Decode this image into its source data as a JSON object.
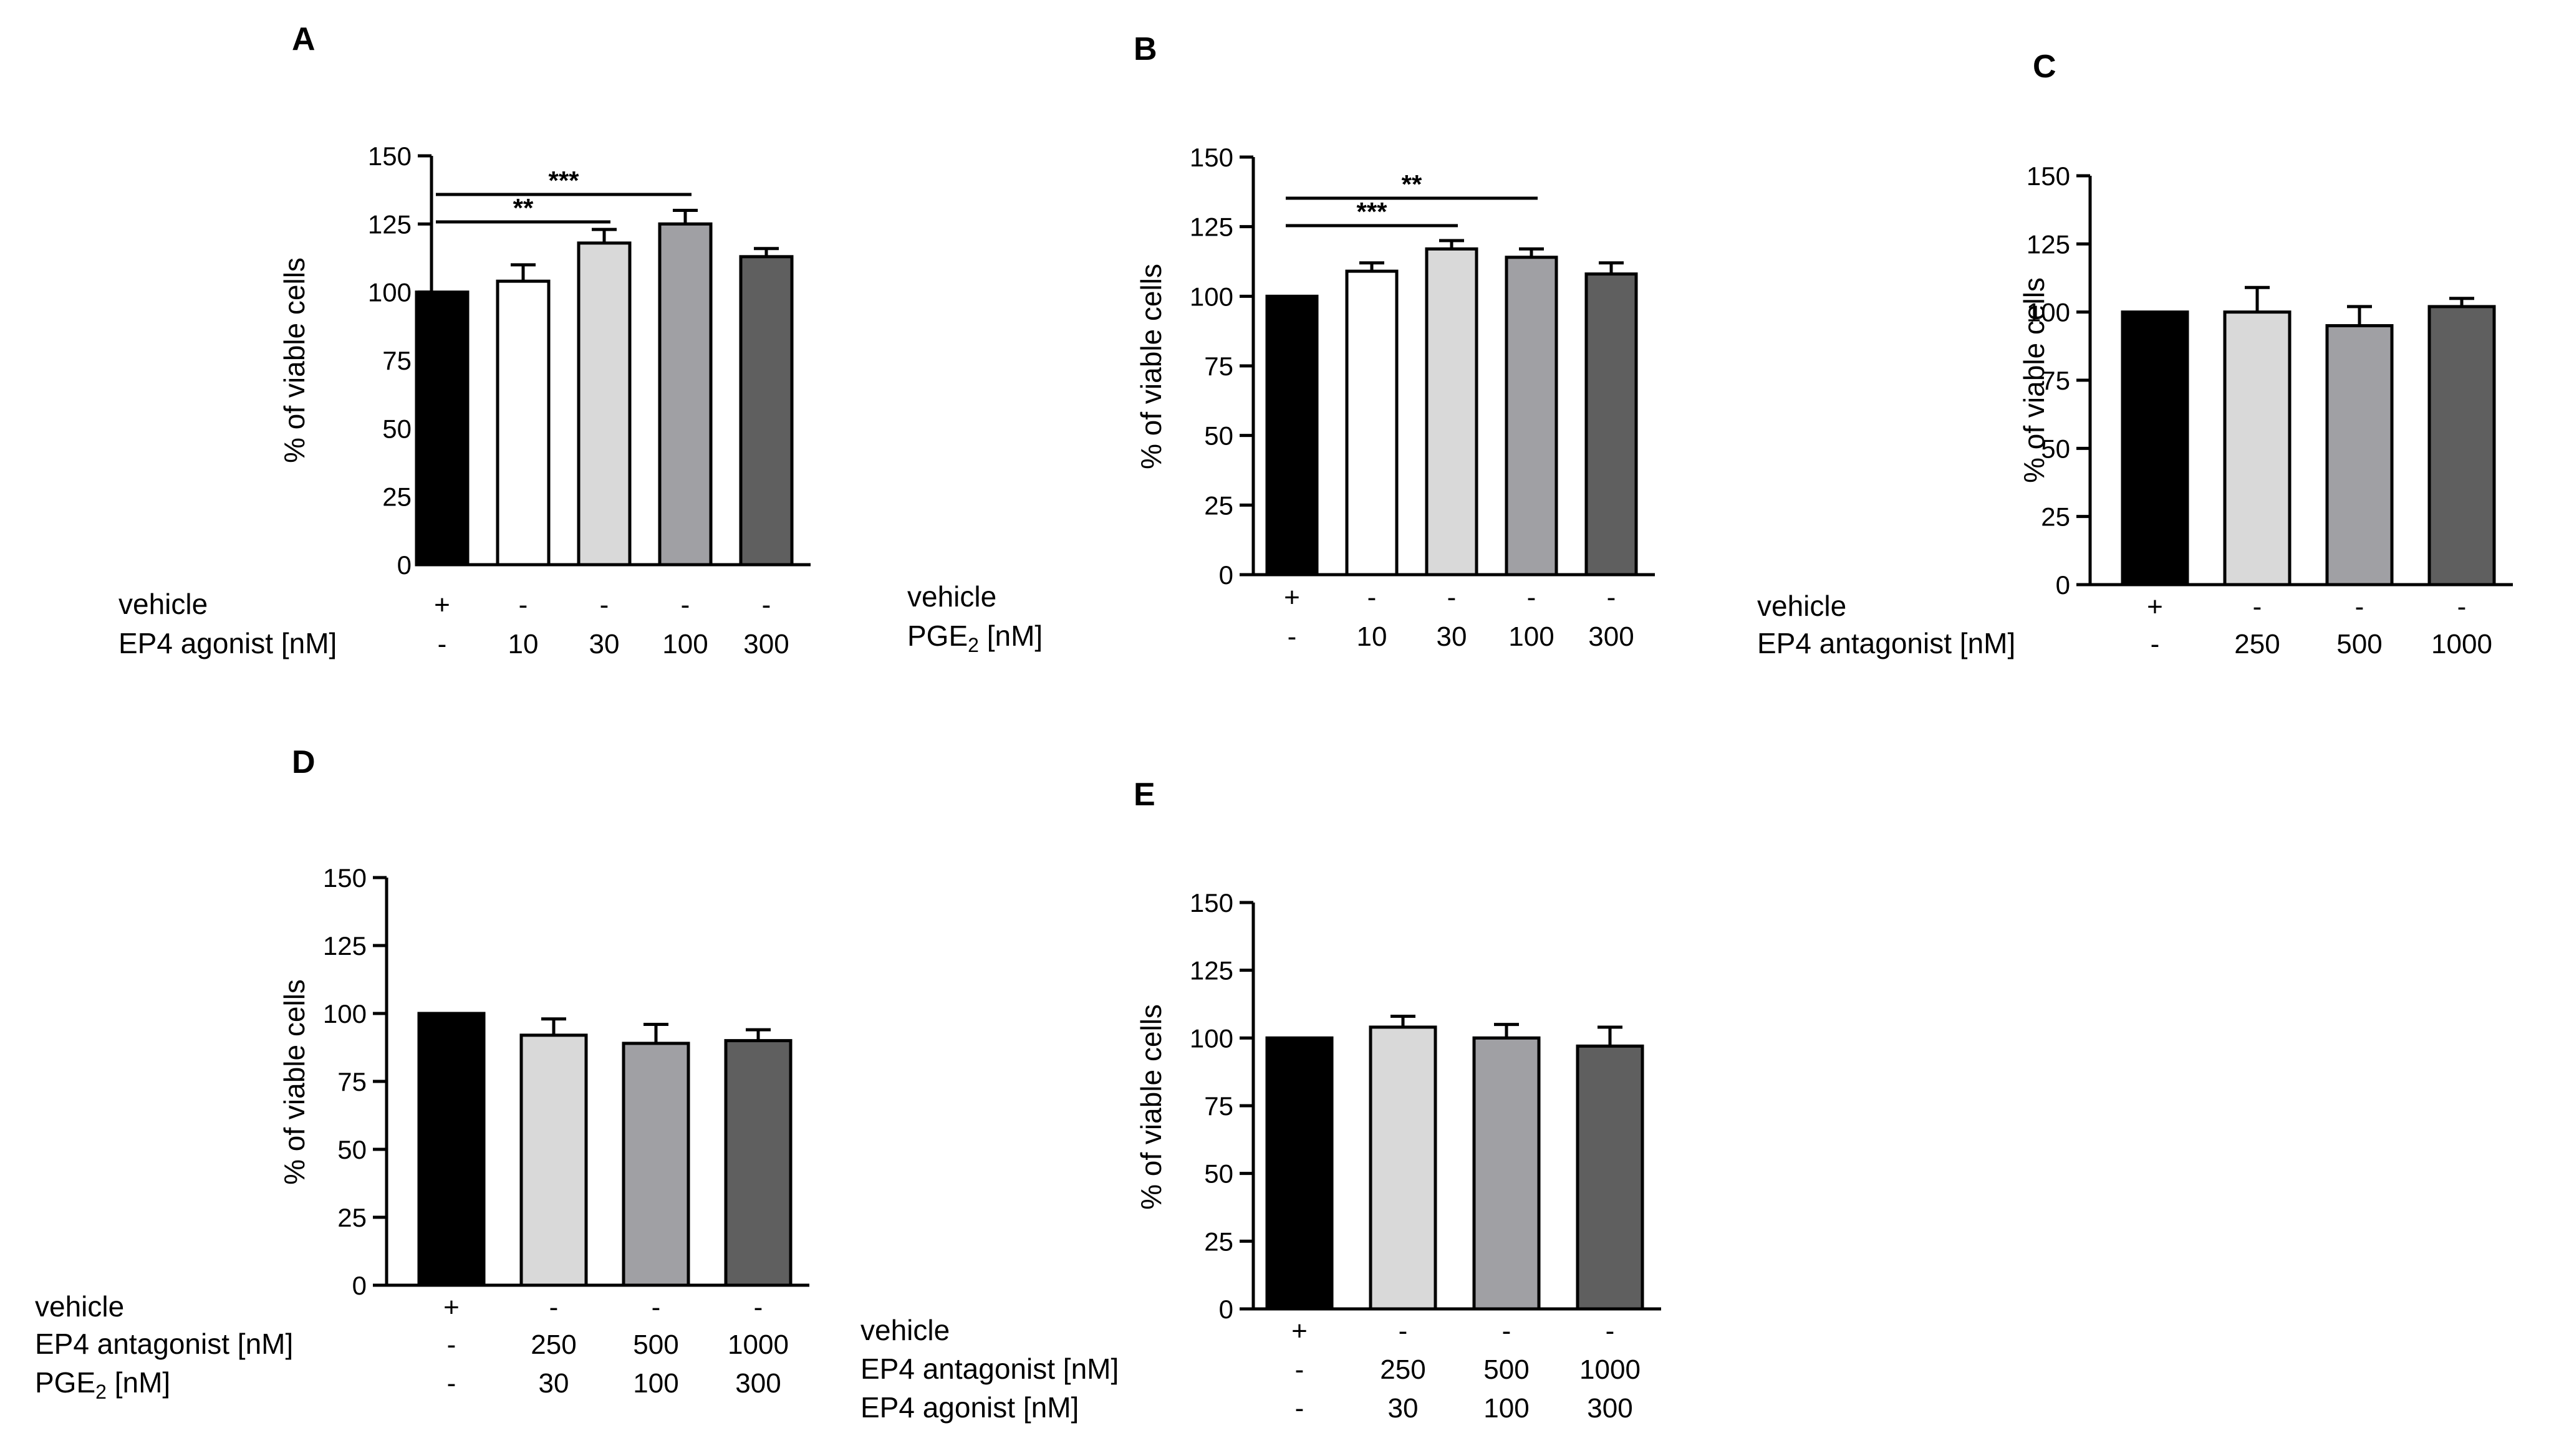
{
  "figure": {
    "axis_color": "#000000",
    "background": "#ffffff"
  },
  "chart_data": [
    {
      "panel": "A",
      "type": "bar",
      "ylabel": "% of viable cells",
      "ylim": [
        0,
        150
      ],
      "yticks": [
        "0",
        "25",
        "50",
        "75",
        "100",
        "125",
        "150"
      ],
      "treatment_rows": [
        {
          "label": "vehicle",
          "values": [
            "+",
            "-",
            "-",
            "-",
            "-"
          ]
        },
        {
          "label": "EP4 agonist [nM]",
          "values": [
            "-",
            "10",
            "30",
            "100",
            "300"
          ]
        }
      ],
      "values": [
        100,
        104,
        118,
        125,
        113
      ],
      "errors": [
        0,
        6,
        5,
        5,
        3
      ],
      "colors": [
        "#000000",
        "#ffffff",
        "#d9d9d9",
        "#a0a0a4",
        "#5f5f5f"
      ],
      "significance": [
        {
          "label": "***",
          "from": 0,
          "to": 3
        },
        {
          "label": "**",
          "from": 0,
          "to": 2
        }
      ]
    },
    {
      "panel": "B",
      "type": "bar",
      "ylabel": "% of viable cells",
      "ylim": [
        0,
        150
      ],
      "yticks": [
        "0",
        "25",
        "50",
        "75",
        "100",
        "125",
        "150"
      ],
      "treatment_rows": [
        {
          "label": "vehicle",
          "values": [
            "+",
            "-",
            "-",
            "-",
            "-"
          ]
        },
        {
          "label": "PGE",
          "sub": "2",
          "suffix": " [nM]",
          "values": [
            "-",
            "10",
            "30",
            "100",
            "300"
          ]
        }
      ],
      "values": [
        100,
        109,
        117,
        114,
        108
      ],
      "errors": [
        0,
        3,
        3,
        3,
        4
      ],
      "colors": [
        "#000000",
        "#ffffff",
        "#d9d9d9",
        "#a0a0a4",
        "#5f5f5f"
      ],
      "significance": [
        {
          "label": "**",
          "from": 0,
          "to": 3
        },
        {
          "label": "***",
          "from": 0,
          "to": 2
        }
      ]
    },
    {
      "panel": "C",
      "type": "bar",
      "ylabel": "% of viable cells",
      "ylim": [
        0,
        150
      ],
      "yticks": [
        "0",
        "25",
        "50",
        "75",
        "100",
        "125",
        "150"
      ],
      "treatment_rows": [
        {
          "label": "vehicle",
          "values": [
            "+",
            "-",
            "-",
            "-"
          ]
        },
        {
          "label": "EP4 antagonist [nM]",
          "values": [
            "-",
            "250",
            "500",
            "1000"
          ]
        }
      ],
      "values": [
        100,
        100,
        95,
        102
      ],
      "errors": [
        0,
        9,
        7,
        3
      ],
      "colors": [
        "#000000",
        "#d9d9d9",
        "#a0a0a4",
        "#5f5f5f"
      ],
      "significance": []
    },
    {
      "panel": "D",
      "type": "bar",
      "ylabel": "% of viable cells",
      "ylim": [
        0,
        150
      ],
      "yticks": [
        "0",
        "25",
        "50",
        "75",
        "100",
        "125",
        "150"
      ],
      "treatment_rows": [
        {
          "label": "vehicle",
          "values": [
            "+",
            "-",
            "-",
            "-"
          ]
        },
        {
          "label": "EP4 antagonist [nM]",
          "values": [
            "-",
            "250",
            "500",
            "1000"
          ]
        },
        {
          "label": "PGE",
          "sub": "2",
          "suffix": " [nM]",
          "values": [
            "-",
            "30",
            "100",
            "300"
          ]
        }
      ],
      "values": [
        100,
        92,
        89,
        90
      ],
      "errors": [
        0,
        6,
        7,
        4
      ],
      "colors": [
        "#000000",
        "#d9d9d9",
        "#a0a0a4",
        "#5f5f5f"
      ],
      "significance": []
    },
    {
      "panel": "E",
      "type": "bar",
      "ylabel": "% of viable cells",
      "ylim": [
        0,
        150
      ],
      "yticks": [
        "0",
        "25",
        "50",
        "75",
        "100",
        "125",
        "150"
      ],
      "treatment_rows": [
        {
          "label": "vehicle",
          "values": [
            "+",
            "-",
            "-",
            "-"
          ]
        },
        {
          "label": "EP4 antagonist [nM]",
          "values": [
            "-",
            "250",
            "500",
            "1000"
          ]
        },
        {
          "label": "EP4 agonist [nM]",
          "values": [
            "-",
            "30",
            "100",
            "300"
          ]
        }
      ],
      "values": [
        100,
        104,
        100,
        97
      ],
      "errors": [
        0,
        4,
        5,
        7
      ],
      "colors": [
        "#000000",
        "#d9d9d9",
        "#a0a0a4",
        "#5f5f5f"
      ],
      "significance": []
    }
  ]
}
